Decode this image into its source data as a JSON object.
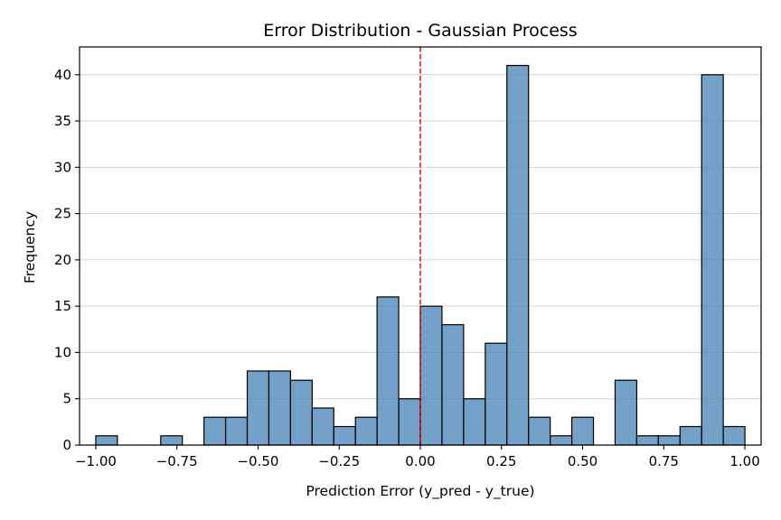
{
  "chart_data": {
    "type": "histogram",
    "title": "Error Distribution - Gaussian Process",
    "xlabel": "Prediction Error (y_pred - y_true)",
    "ylabel": "Frequency",
    "xlim": [
      -1.05,
      1.05
    ],
    "ylim": [
      0,
      43
    ],
    "xticks": [
      -1.0,
      -0.75,
      -0.5,
      -0.25,
      0.0,
      0.25,
      0.5,
      0.75,
      1.0
    ],
    "xtick_labels": [
      "−1.00",
      "−0.75",
      "−0.50",
      "−0.25",
      "0.00",
      "0.25",
      "0.50",
      "0.75",
      "1.00"
    ],
    "yticks": [
      0,
      5,
      10,
      15,
      20,
      25,
      30,
      35,
      40
    ],
    "ytick_labels": [
      "0",
      "5",
      "10",
      "15",
      "20",
      "25",
      "30",
      "35",
      "40"
    ],
    "bin_start": -1.0,
    "bin_width": 0.06667,
    "counts": [
      1,
      0,
      0,
      1,
      0,
      3,
      3,
      8,
      8,
      7,
      4,
      2,
      3,
      16,
      5,
      15,
      13,
      5,
      11,
      41,
      3,
      1,
      3,
      0,
      7,
      1,
      1,
      2,
      40,
      2
    ],
    "reference_line": {
      "x": 0.0,
      "style": "dashed",
      "color": "#ff0000"
    },
    "bar_color": "#4682b4",
    "bar_edge_color": "#000000",
    "grid": "y-axis"
  }
}
